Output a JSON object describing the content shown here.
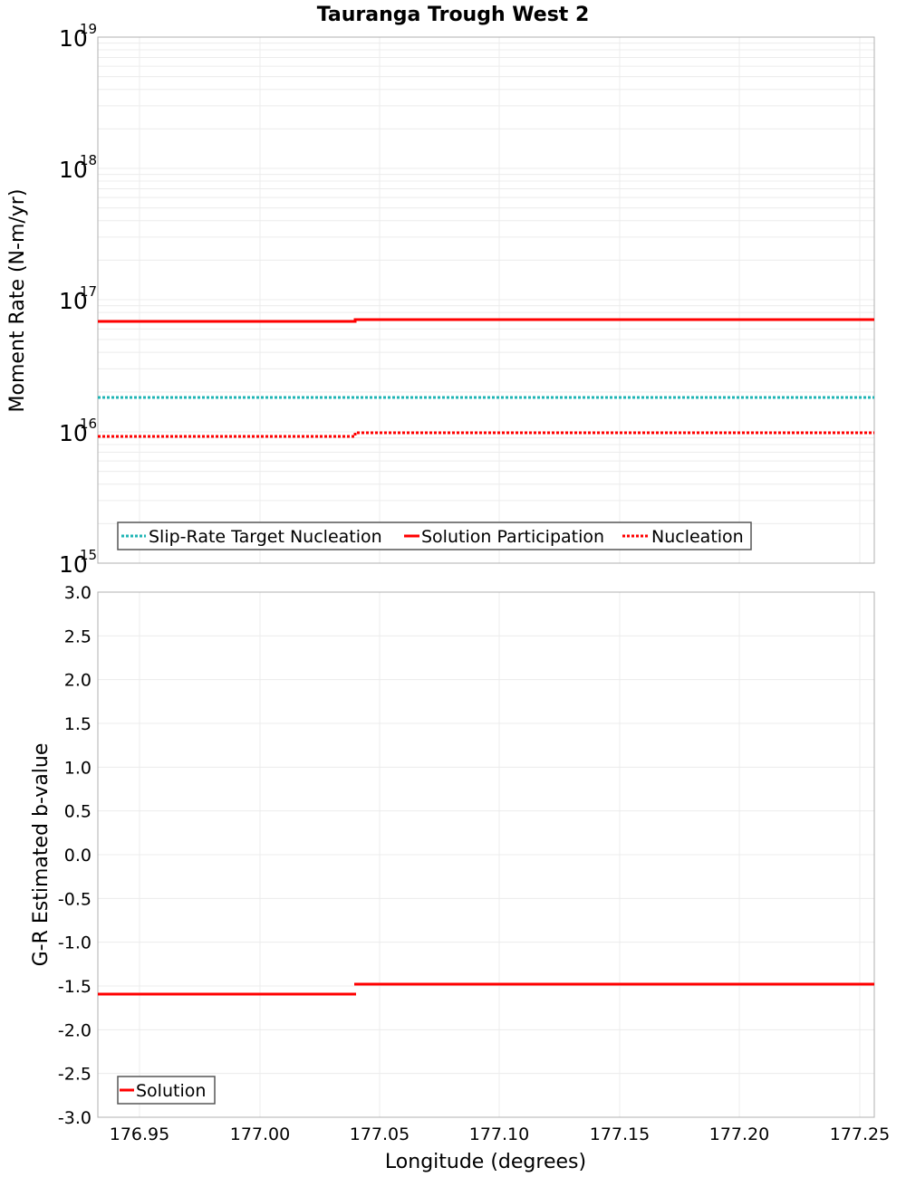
{
  "title": "Tauranga Trough West 2",
  "top_plot": {
    "ylabel": "Moment Rate (N-m/yr)",
    "y_ticks": [
      {
        "base": "10",
        "exp": "19"
      },
      {
        "base": "10",
        "exp": "18"
      },
      {
        "base": "10",
        "exp": "17"
      },
      {
        "base": "10",
        "exp": "16"
      },
      {
        "base": "10",
        "exp": "15"
      }
    ],
    "legend": [
      "Slip-Rate Target Nucleation",
      "Solution Participation",
      "Nucleation"
    ]
  },
  "bottom_plot": {
    "ylabel": "G-R Estimated b-value",
    "y_ticks": [
      "3.0",
      "2.5",
      "2.0",
      "1.5",
      "1.0",
      "0.5",
      "0.0",
      "-0.5",
      "-1.0",
      "-1.5",
      "-2.0",
      "-2.5",
      "-3.0"
    ],
    "legend": [
      "Solution"
    ]
  },
  "xlabel": "Longitude (degrees)",
  "x_ticks": [
    "176.95",
    "177.00",
    "177.05",
    "177.10",
    "177.15",
    "177.20",
    "177.25"
  ],
  "colors": {
    "solution": "#ff0000",
    "target": "#1fb5b5",
    "grid": "#e8e8e8",
    "frame": "#b0b0b0"
  },
  "chart_data": [
    {
      "type": "line",
      "title": "Tauranga Trough West 2",
      "xlabel": "Longitude (degrees)",
      "ylabel": "Moment Rate (N-m/yr)",
      "yscale": "log",
      "ylim": [
        1000000000000000.0,
        1e+19
      ],
      "xlim": [
        176.934,
        177.256
      ],
      "x_ticks": [
        176.95,
        177.0,
        177.05,
        177.1,
        177.15,
        177.2,
        177.25
      ],
      "legend_position": "bottom-left inside",
      "grid": true,
      "series": [
        {
          "name": "Slip-Rate Target Nucleation",
          "style": "dotted",
          "color": "#1fb5b5",
          "x": [
            176.934,
            177.04,
            177.04,
            177.256
          ],
          "y": [
            1.8e+16,
            1.8e+16,
            1.8e+16,
            1.8e+16
          ]
        },
        {
          "name": "Solution Participation",
          "style": "solid",
          "color": "#ff0000",
          "x": [
            176.934,
            177.04,
            177.04,
            177.256
          ],
          "y": [
            6.8e+16,
            6.8e+16,
            7.1e+16,
            7.1e+16
          ]
        },
        {
          "name": "Nucleation",
          "style": "dotted",
          "color": "#ff0000",
          "x": [
            176.934,
            177.04,
            177.04,
            177.256
          ],
          "y": [
            9200000000000000.0,
            9200000000000000.0,
            9800000000000000.0,
            9800000000000000.0
          ]
        }
      ]
    },
    {
      "type": "line",
      "xlabel": "Longitude (degrees)",
      "ylabel": "G-R Estimated b-value",
      "ylim": [
        -3.0,
        3.0
      ],
      "xlim": [
        176.934,
        177.256
      ],
      "y_ticks": [
        3.0,
        2.5,
        2.0,
        1.5,
        1.0,
        0.5,
        0.0,
        -0.5,
        -1.0,
        -1.5,
        -2.0,
        -2.5,
        -3.0
      ],
      "legend_position": "bottom-left inside",
      "grid": true,
      "series": [
        {
          "name": "Solution",
          "style": "solid",
          "color": "#ff0000",
          "x": [
            176.934,
            177.04,
            177.04,
            177.159,
            177.159,
            177.256
          ],
          "y": [
            -1.59,
            -1.59,
            -1.48,
            -1.48,
            -1.48,
            -1.48
          ]
        }
      ]
    }
  ]
}
